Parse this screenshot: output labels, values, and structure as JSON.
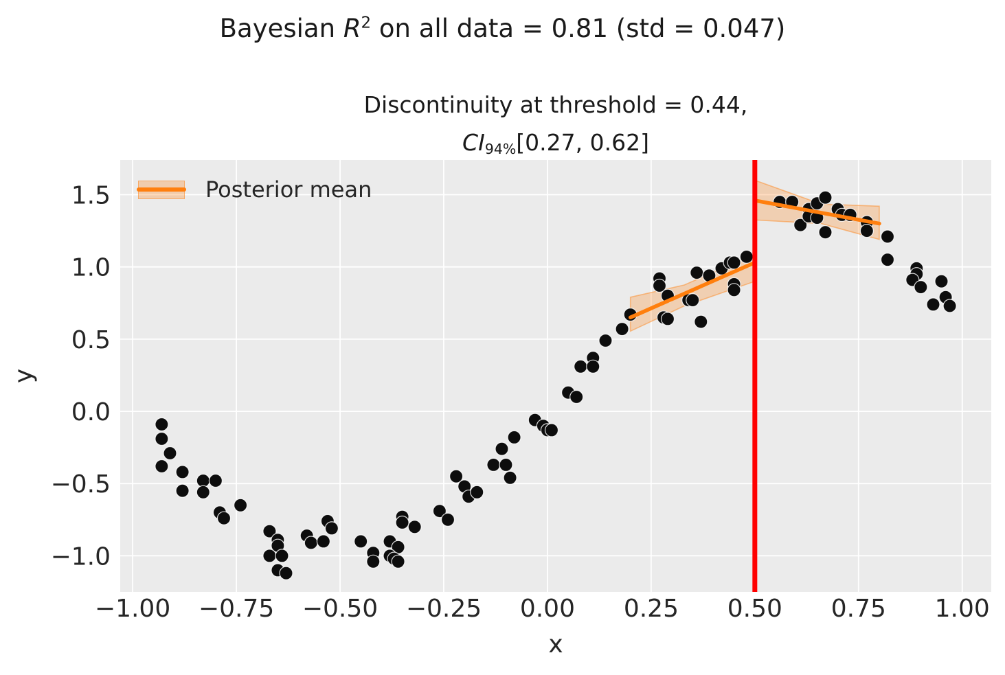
{
  "titles": {
    "suptitle_prefix": "Bayesian ",
    "suptitle_var": "R",
    "suptitle_sup": "2",
    "suptitle_rest": " on all data = 0.81 (std = 0.047)",
    "subtitle_line1": "Discontinuity at threshold = 0.44,",
    "subtitle_ci_var": "CI",
    "subtitle_ci_sub": "94%",
    "subtitle_ci_rest": "[0.27, 0.62]"
  },
  "legend": {
    "label": "Posterior mean",
    "position": "upper left"
  },
  "chart_data": {
    "type": "scatter",
    "suptitle": "Bayesian R^2 on all data = 0.81 (std = 0.047)",
    "title": "Discontinuity at threshold = 0.44, CI_94% [0.27, 0.62]",
    "xlabel": "x",
    "ylabel": "y",
    "xlim": [
      -1.03,
      1.07
    ],
    "ylim": [
      -1.25,
      1.74
    ],
    "grid": true,
    "legend_position": "upper left",
    "xticks": {
      "values": [
        -1.0,
        -0.75,
        -0.5,
        -0.25,
        0.0,
        0.25,
        0.5,
        0.75,
        1.0
      ],
      "labels": [
        "−1.00",
        "−0.75",
        "−0.50",
        "−0.25",
        "0.00",
        "0.25",
        "0.50",
        "0.75",
        "1.00"
      ]
    },
    "yticks": {
      "values": [
        1.5,
        1.0,
        0.5,
        0.0,
        -0.5,
        -1.0
      ],
      "labels": [
        "1.5",
        "1.0",
        "0.5",
        "0.0",
        "−0.5",
        "−1.0"
      ]
    },
    "colors": {
      "scatter": "#0d0d0d",
      "posterior_mean": "#ff7f0e",
      "credible_band": "#ff7f0e",
      "threshold_line": "#ff0000",
      "axes_background": "#ebebeb",
      "grid": "#ffffff",
      "text": "#262626"
    },
    "threshold": {
      "x": 0.5
    },
    "series": [
      {
        "name": "Posterior mean (left segment)",
        "type": "line",
        "x": [
          0.2,
          0.5
        ],
        "y": [
          0.65,
          1.03
        ],
        "band_top": [
          [
            0.2,
            0.79
          ],
          [
            0.33,
            0.875
          ],
          [
            0.5,
            1.09
          ]
        ],
        "band_bottom": [
          [
            0.2,
            0.555
          ],
          [
            0.33,
            0.73
          ],
          [
            0.5,
            0.9
          ]
        ]
      },
      {
        "name": "Posterior mean (right segment)",
        "type": "line",
        "x": [
          0.5,
          0.8
        ],
        "y": [
          1.46,
          1.3
        ],
        "band_top": [
          [
            0.5,
            1.6
          ],
          [
            0.66,
            1.435
          ],
          [
            0.8,
            1.42
          ]
        ],
        "band_bottom": [
          [
            0.5,
            1.325
          ],
          [
            0.66,
            1.3
          ],
          [
            0.8,
            1.19
          ]
        ]
      }
    ],
    "scatter_points": [
      [
        -0.93,
        -0.09
      ],
      [
        -0.93,
        -0.19
      ],
      [
        -0.91,
        -0.29
      ],
      [
        -0.93,
        -0.38
      ],
      [
        -0.88,
        -0.42
      ],
      [
        -0.88,
        -0.55
      ],
      [
        -0.83,
        -0.48
      ],
      [
        -0.8,
        -0.48
      ],
      [
        -0.83,
        -0.56
      ],
      [
        -0.74,
        -0.65
      ],
      [
        -0.79,
        -0.7
      ],
      [
        -0.78,
        -0.74
      ],
      [
        -0.67,
        -0.83
      ],
      [
        -0.65,
        -0.89
      ],
      [
        -0.65,
        -0.93
      ],
      [
        -0.67,
        -1.0
      ],
      [
        -0.64,
        -1.0
      ],
      [
        -0.65,
        -1.1
      ],
      [
        -0.63,
        -1.12
      ],
      [
        -0.58,
        -0.86
      ],
      [
        -0.57,
        -0.91
      ],
      [
        -0.54,
        -0.9
      ],
      [
        -0.53,
        -0.76
      ],
      [
        -0.52,
        -0.81
      ],
      [
        -0.45,
        -0.9
      ],
      [
        -0.42,
        -0.98
      ],
      [
        -0.42,
        -1.04
      ],
      [
        -0.38,
        -0.9
      ],
      [
        -0.36,
        -0.94
      ],
      [
        -0.38,
        -1.0
      ],
      [
        -0.37,
        -1.02
      ],
      [
        -0.36,
        -1.04
      ],
      [
        -0.35,
        -0.73
      ],
      [
        -0.35,
        -0.77
      ],
      [
        -0.32,
        -0.8
      ],
      [
        -0.26,
        -0.69
      ],
      [
        -0.24,
        -0.75
      ],
      [
        -0.22,
        -0.45
      ],
      [
        -0.2,
        -0.52
      ],
      [
        -0.19,
        -0.59
      ],
      [
        -0.17,
        -0.56
      ],
      [
        -0.13,
        -0.37
      ],
      [
        -0.1,
        -0.37
      ],
      [
        -0.11,
        -0.26
      ],
      [
        -0.08,
        -0.18
      ],
      [
        -0.09,
        -0.46
      ],
      [
        -0.03,
        -0.06
      ],
      [
        -0.01,
        -0.1
      ],
      [
        0.0,
        -0.13
      ],
      [
        0.01,
        -0.13
      ],
      [
        0.05,
        0.13
      ],
      [
        0.07,
        0.1
      ],
      [
        0.08,
        0.31
      ],
      [
        0.11,
        0.37
      ],
      [
        0.11,
        0.31
      ],
      [
        0.14,
        0.49
      ],
      [
        0.18,
        0.57
      ],
      [
        0.2,
        0.67
      ],
      [
        0.27,
        0.92
      ],
      [
        0.27,
        0.87
      ],
      [
        0.29,
        0.8
      ],
      [
        0.28,
        0.65
      ],
      [
        0.29,
        0.64
      ],
      [
        0.34,
        0.77
      ],
      [
        0.35,
        0.77
      ],
      [
        0.36,
        0.96
      ],
      [
        0.37,
        0.62
      ],
      [
        0.39,
        0.94
      ],
      [
        0.42,
        0.99
      ],
      [
        0.44,
        1.03
      ],
      [
        0.45,
        1.03
      ],
      [
        0.45,
        0.88
      ],
      [
        0.45,
        0.84
      ],
      [
        0.48,
        1.07
      ],
      [
        0.56,
        1.45
      ],
      [
        0.59,
        1.45
      ],
      [
        0.61,
        1.29
      ],
      [
        0.63,
        1.4
      ],
      [
        0.63,
        1.35
      ],
      [
        0.65,
        1.34
      ],
      [
        0.65,
        1.44
      ],
      [
        0.67,
        1.48
      ],
      [
        0.67,
        1.24
      ],
      [
        0.7,
        1.4
      ],
      [
        0.71,
        1.36
      ],
      [
        0.73,
        1.36
      ],
      [
        0.77,
        1.31
      ],
      [
        0.77,
        1.25
      ],
      [
        0.82,
        1.21
      ],
      [
        0.82,
        1.05
      ],
      [
        0.89,
        0.99
      ],
      [
        0.89,
        0.95
      ],
      [
        0.88,
        0.91
      ],
      [
        0.9,
        0.86
      ],
      [
        0.95,
        0.9
      ],
      [
        0.96,
        0.79
      ],
      [
        0.93,
        0.74
      ],
      [
        0.97,
        0.73
      ]
    ]
  }
}
